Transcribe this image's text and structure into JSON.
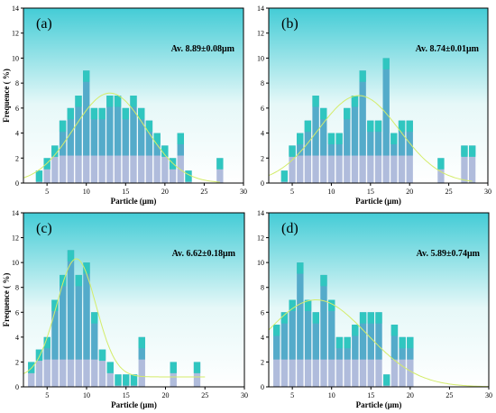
{
  "chart_data": [
    {
      "type": "bar",
      "panel_label": "(a)",
      "annotation": "Av. 8.89±0.08μm",
      "xlabel": "Particle (μm)",
      "ylabel": "Frequence ( %)",
      "xlim": [
        2,
        30
      ],
      "ylim": [
        0,
        14
      ],
      "xticks": [
        5,
        10,
        15,
        20,
        25,
        30
      ],
      "yticks": [
        0,
        2,
        4,
        6,
        8,
        10,
        12,
        14
      ],
      "grid": false,
      "bars": [
        {
          "x": 4,
          "y": 1
        },
        {
          "x": 5,
          "y": 2
        },
        {
          "x": 6,
          "y": 3
        },
        {
          "x": 7,
          "y": 5
        },
        {
          "x": 8,
          "y": 6
        },
        {
          "x": 9,
          "y": 7
        },
        {
          "x": 10,
          "y": 9
        },
        {
          "x": 11,
          "y": 6
        },
        {
          "x": 12,
          "y": 6
        },
        {
          "x": 13,
          "y": 7
        },
        {
          "x": 14,
          "y": 7
        },
        {
          "x": 15,
          "y": 6
        },
        {
          "x": 16,
          "y": 7
        },
        {
          "x": 17,
          "y": 6
        },
        {
          "x": 18,
          "y": 5
        },
        {
          "x": 19,
          "y": 4
        },
        {
          "x": 20,
          "y": 3
        },
        {
          "x": 21,
          "y": 2
        },
        {
          "x": 22,
          "y": 4
        },
        {
          "x": 23,
          "y": 1
        },
        {
          "x": 27,
          "y": 2
        }
      ],
      "fit": {
        "mean": 13,
        "sd": 4.6,
        "amp": 7.2,
        "x_range": [
          2,
          27
        ]
      }
    },
    {
      "type": "bar",
      "panel_label": "(b)",
      "annotation": "Av. 8.74±0.01μm",
      "xlabel": "Particle (μm)",
      "ylabel": "",
      "xlim": [
        2,
        30
      ],
      "ylim": [
        0,
        14
      ],
      "xticks": [
        5,
        10,
        15,
        20,
        25,
        30
      ],
      "yticks": [
        0,
        2,
        4,
        6,
        8,
        10,
        12,
        14
      ],
      "grid": false,
      "bars": [
        {
          "x": 4,
          "y": 1
        },
        {
          "x": 5,
          "y": 3
        },
        {
          "x": 6,
          "y": 4
        },
        {
          "x": 7,
          "y": 5
        },
        {
          "x": 8,
          "y": 7
        },
        {
          "x": 9,
          "y": 6
        },
        {
          "x": 10,
          "y": 4
        },
        {
          "x": 11,
          "y": 4
        },
        {
          "x": 12,
          "y": 6
        },
        {
          "x": 13,
          "y": 7
        },
        {
          "x": 14,
          "y": 9
        },
        {
          "x": 15,
          "y": 5
        },
        {
          "x": 16,
          "y": 5
        },
        {
          "x": 17,
          "y": 10
        },
        {
          "x": 18,
          "y": 4
        },
        {
          "x": 19,
          "y": 5
        },
        {
          "x": 20,
          "y": 5
        },
        {
          "x": 24,
          "y": 2
        },
        {
          "x": 27,
          "y": 3
        },
        {
          "x": 28,
          "y": 3
        }
      ],
      "fit": {
        "mean": 13.5,
        "sd": 5.2,
        "amp": 7.0,
        "x_range": [
          2,
          28
        ]
      }
    },
    {
      "type": "bar",
      "panel_label": "(c)",
      "annotation": "Av. 6.62±0.18μm",
      "xlabel": "Particle (μm)",
      "ylabel": "Frequence ( %)",
      "xlim": [
        2,
        30
      ],
      "ylim": [
        0,
        14
      ],
      "xticks": [
        5,
        10,
        15,
        20,
        25,
        30
      ],
      "yticks": [
        0,
        2,
        4,
        6,
        8,
        10,
        12,
        14
      ],
      "grid": false,
      "bars": [
        {
          "x": 3,
          "y": 2
        },
        {
          "x": 4,
          "y": 3
        },
        {
          "x": 5,
          "y": 4
        },
        {
          "x": 6,
          "y": 7
        },
        {
          "x": 7,
          "y": 9
        },
        {
          "x": 8,
          "y": 11
        },
        {
          "x": 9,
          "y": 9
        },
        {
          "x": 10,
          "y": 10
        },
        {
          "x": 11,
          "y": 6
        },
        {
          "x": 12,
          "y": 3
        },
        {
          "x": 13,
          "y": 2
        },
        {
          "x": 14,
          "y": 1
        },
        {
          "x": 15,
          "y": 1
        },
        {
          "x": 16,
          "y": 1
        },
        {
          "x": 17,
          "y": 4
        },
        {
          "x": 21,
          "y": 2
        },
        {
          "x": 24,
          "y": 2
        }
      ],
      "fit": {
        "mean": 8.7,
        "sd": 2.5,
        "amp": 9.5,
        "baseline": 0.8,
        "x_range": [
          2,
          25
        ]
      }
    },
    {
      "type": "bar",
      "panel_label": "(d)",
      "annotation": "Av. 5.89±0.74μm",
      "xlabel": "Particle (μm)",
      "ylabel": "",
      "xlim": [
        2,
        30
      ],
      "ylim": [
        0,
        14
      ],
      "xticks": [
        5,
        10,
        15,
        20,
        25,
        30
      ],
      "yticks": [
        0,
        2,
        4,
        6,
        8,
        10,
        12,
        14
      ],
      "grid": false,
      "bars": [
        {
          "x": 3,
          "y": 5
        },
        {
          "x": 4,
          "y": 6
        },
        {
          "x": 5,
          "y": 7
        },
        {
          "x": 6,
          "y": 10
        },
        {
          "x": 7,
          "y": 7
        },
        {
          "x": 8,
          "y": 6
        },
        {
          "x": 9,
          "y": 9
        },
        {
          "x": 10,
          "y": 7
        },
        {
          "x": 11,
          "y": 4
        },
        {
          "x": 12,
          "y": 4
        },
        {
          "x": 13,
          "y": 5
        },
        {
          "x": 14,
          "y": 6
        },
        {
          "x": 15,
          "y": 6
        },
        {
          "x": 16,
          "y": 6
        },
        {
          "x": 17,
          "y": 1
        },
        {
          "x": 18,
          "y": 5
        },
        {
          "x": 19,
          "y": 4
        },
        {
          "x": 20,
          "y": 4
        }
      ],
      "fit": {
        "mean": 8,
        "sd": 6.5,
        "amp": 7.0,
        "x_range": [
          2,
          30
        ]
      }
    }
  ],
  "colors": {
    "bar_light": "#b0bcdc",
    "bar_mid": "#4aa8c8",
    "bar_top": "#30c6c0",
    "panel_bg_bottom": "#ffffff",
    "panel_bg_top": "#44ccd6",
    "fit_line": "#d4ec6a"
  }
}
